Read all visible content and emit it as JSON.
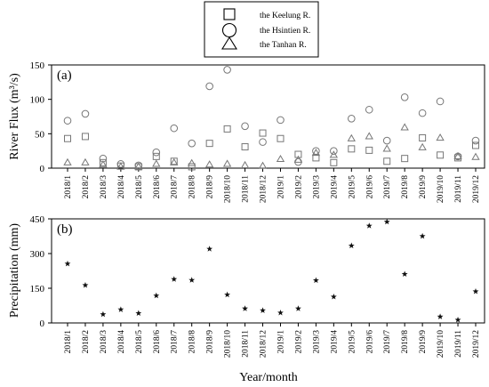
{
  "chart_data": [
    {
      "type": "scatter",
      "panel_label": "(a)",
      "ylabel": "River Flux (m³/s)",
      "ylim": [
        0,
        150
      ],
      "yticks": [
        "0",
        "50",
        "100",
        "150"
      ],
      "categories": [
        "2018/1",
        "2018/2",
        "2018/3",
        "2018/4",
        "2018/5",
        "2018/6",
        "2018/7",
        "2018/8",
        "2018/9",
        "2018/10",
        "2018/11",
        "2018/12",
        "2019/1",
        "2019/2",
        "2019/3",
        "2019/4",
        "2019/5",
        "2019/6",
        "2019/7",
        "2019/8",
        "2019/9",
        "2019/10",
        "2019/11",
        "2019/12"
      ],
      "series": [
        {
          "name": "the Keelung R.",
          "marker": "square",
          "values": [
            43,
            46,
            8,
            3,
            2,
            17,
            10,
            2,
            36,
            57,
            31,
            51,
            43,
            20,
            15,
            8,
            28,
            26,
            10,
            14,
            44,
            19,
            15,
            33
          ]
        },
        {
          "name": "the Hsintien R.",
          "marker": "circle",
          "values": [
            69,
            79,
            14,
            6,
            4,
            23,
            58,
            36,
            119,
            143,
            61,
            38,
            70,
            9,
            25,
            25,
            72,
            85,
            40,
            103,
            80,
            97,
            17,
            40
          ]
        },
        {
          "name": "the Tanhan R.",
          "marker": "triangle",
          "values": [
            8,
            8,
            5,
            2,
            2,
            6,
            8,
            7,
            5,
            6,
            4,
            3,
            13,
            12,
            22,
            19,
            43,
            46,
            28,
            59,
            30,
            44,
            17,
            16
          ]
        }
      ],
      "legend_position": "top-center"
    },
    {
      "type": "scatter",
      "panel_label": "(b)",
      "ylabel": "Precipitation (mm)",
      "xlabel": "Year/month",
      "ylim": [
        0,
        450
      ],
      "yticks": [
        "0",
        "150",
        "300",
        "450"
      ],
      "categories": [
        "2018/1",
        "2018/2",
        "2018/3",
        "2018/4",
        "2018/5",
        "2018/6",
        "2018/7",
        "2018/8",
        "2018/9",
        "2018/10",
        "2018/11",
        "2018/12",
        "2019/1",
        "2019/2",
        "2019/3",
        "2019/4",
        "2019/5",
        "2019/6",
        "2019/7",
        "2019/8",
        "2019/9",
        "2019/10",
        "2019/11",
        "2019/12"
      ],
      "series": [
        {
          "marker": "star",
          "values": [
            256,
            163,
            37,
            58,
            42,
            118,
            189,
            185,
            320,
            122,
            62,
            54,
            44,
            62,
            184,
            113,
            334,
            420,
            437,
            211,
            375,
            27,
            13,
            136
          ]
        }
      ]
    }
  ]
}
